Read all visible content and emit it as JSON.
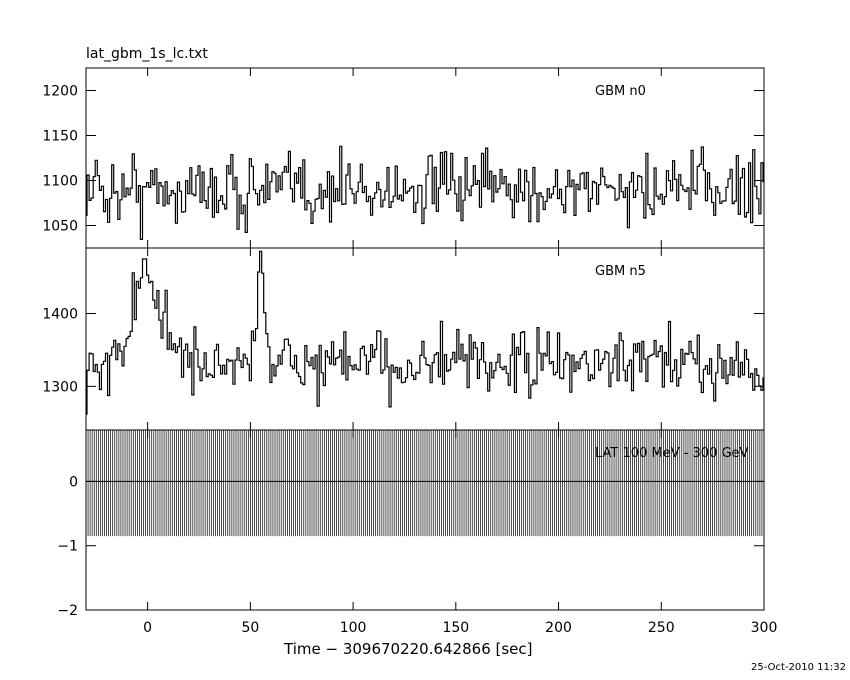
{
  "title": "lat_gbm_1s_lc.txt",
  "xlabel": "Time − 309670220.642866 [sec]",
  "timestamp": "25-Oct-2010 11:32",
  "chart_data": {
    "type": "line",
    "x_range": [
      -30,
      300
    ],
    "x_ticks": [
      0,
      50,
      100,
      150,
      200,
      250,
      300
    ],
    "x_tick_labels": [
      "0",
      "50",
      "100",
      "150",
      "200",
      "250",
      "300"
    ],
    "x_step_sec": 1,
    "panels": [
      {
        "name": "GBM n0",
        "ylim": [
          1025,
          1225
        ],
        "y_ticks": [
          1050,
          1100,
          1150,
          1200
        ],
        "y_tick_labels": [
          "1050",
          "1100",
          "1150",
          "1200"
        ],
        "mean": 1090,
        "noise": 28,
        "peaks": []
      },
      {
        "name": "GBM n5",
        "ylim": [
          1240,
          1490
        ],
        "y_ticks": [
          1300,
          1400
        ],
        "y_tick_labels": [
          "1300",
          "1400"
        ],
        "mean": 1330,
        "noise": 30,
        "peaks": [
          [
            -2,
            115,
            6
          ],
          [
            10,
            40,
            4
          ],
          [
            55,
            140,
            2
          ]
        ]
      },
      {
        "name": "LAT 100 MeV - 300 GeV",
        "ylim": [
          -2,
          0.8
        ],
        "y_ticks": [
          -2,
          -1,
          0
        ],
        "y_tick_labels": [
          "−2",
          "−1",
          "0"
        ],
        "constant": 0,
        "error_bar": [
          -0.85,
          0.85
        ]
      }
    ]
  }
}
